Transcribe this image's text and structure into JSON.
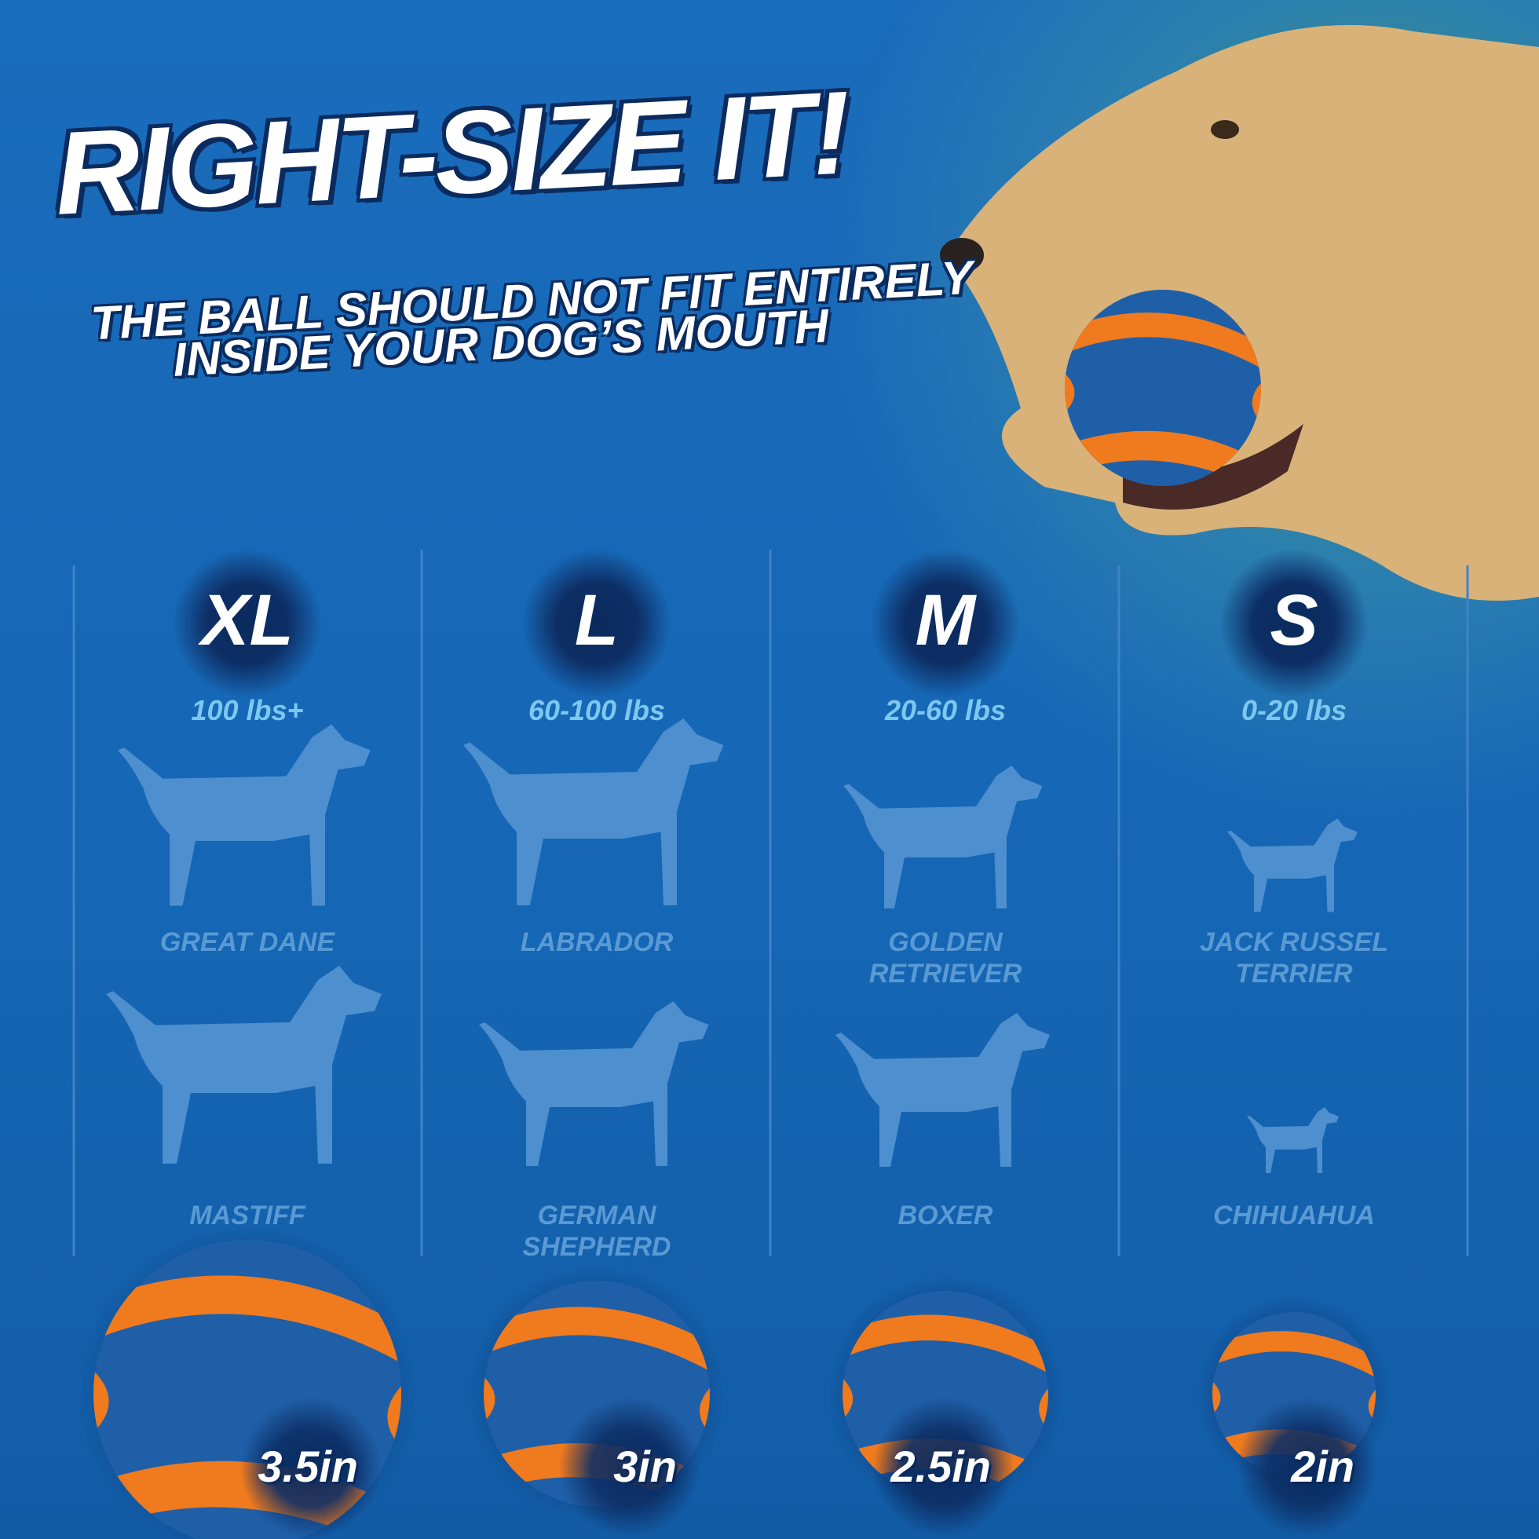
{
  "header": {
    "title": "RIGHT-SIZE IT!",
    "subtitle_lines": [
      "THE BALL SHOULD NOT FIT ENTIRELY",
      "INSIDE YOUR DOG’S MOUTH"
    ]
  },
  "sizes": [
    {
      "label": "XL",
      "weight": "100 lbs+",
      "breeds": [
        "GREAT DANE",
        "MASTIFF"
      ],
      "ball": "3.5in"
    },
    {
      "label": "L",
      "weight": "60-100 lbs",
      "breeds": [
        "LABRADOR",
        "GERMAN SHEPHERD"
      ],
      "ball": "3in"
    },
    {
      "label": "M",
      "weight": "20-60 lbs",
      "breeds": [
        "GOLDEN RETRIEVER",
        "BOXER"
      ],
      "ball": "2.5in"
    },
    {
      "label": "S",
      "weight": "0-20 lbs",
      "breeds": [
        "JACK RUSSEL TERRIER",
        "CHIHUAHUA"
      ],
      "ball": "2in"
    }
  ]
}
